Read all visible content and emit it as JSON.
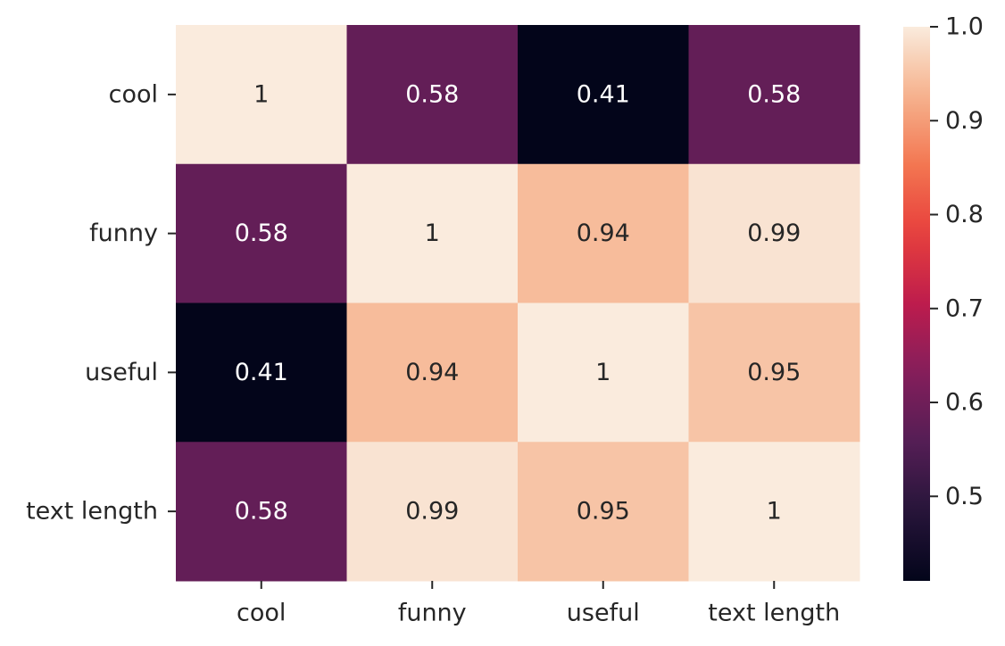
{
  "chart_data": {
    "type": "heatmap",
    "row_labels": [
      "cool",
      "funny",
      "useful",
      "text length"
    ],
    "col_labels": [
      "cool",
      "funny",
      "useful",
      "text length"
    ],
    "values": [
      [
        1.0,
        0.58,
        0.41,
        0.58
      ],
      [
        0.58,
        1.0,
        0.94,
        0.99
      ],
      [
        0.41,
        0.94,
        1.0,
        0.95
      ],
      [
        0.58,
        0.99,
        0.95,
        1.0
      ]
    ],
    "annotations": [
      [
        "1",
        "0.58",
        "0.41",
        "0.58"
      ],
      [
        "0.58",
        "1",
        "0.94",
        "0.99"
      ],
      [
        "0.41",
        "0.94",
        "1",
        "0.95"
      ],
      [
        "0.58",
        "0.99",
        "0.95",
        "1"
      ]
    ],
    "colormap": "rocket",
    "vmin": 0.41,
    "vmax": 1.0,
    "colorbar": {
      "ticks": [
        0.5,
        0.6,
        0.7,
        0.8,
        0.9,
        1.0
      ],
      "tick_labels": [
        "0.5",
        "0.6",
        "0.7",
        "0.8",
        "0.9",
        "1.0"
      ]
    },
    "title": "",
    "xlabel": "",
    "ylabel": ""
  }
}
